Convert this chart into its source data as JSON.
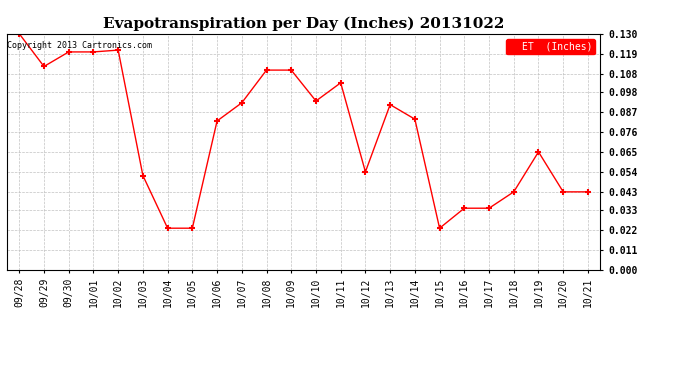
{
  "title": "Evapotranspiration per Day (Inches) 20131022",
  "copyright": "Copyright 2013 Cartronics.com",
  "legend_label": "ET  (Inches)",
  "x_labels": [
    "09/28",
    "09/29",
    "09/30",
    "10/01",
    "10/02",
    "10/03",
    "10/04",
    "10/05",
    "10/06",
    "10/07",
    "10/08",
    "10/09",
    "10/10",
    "10/11",
    "10/12",
    "10/13",
    "10/14",
    "10/15",
    "10/16",
    "10/17",
    "10/18",
    "10/19",
    "10/20",
    "10/21"
  ],
  "y_values": [
    0.13,
    0.112,
    0.12,
    0.12,
    0.121,
    0.052,
    0.023,
    0.023,
    0.082,
    0.092,
    0.11,
    0.11,
    0.093,
    0.103,
    0.054,
    0.091,
    0.083,
    0.023,
    0.034,
    0.034,
    0.043,
    0.065,
    0.043,
    0.043
  ],
  "ylim": [
    0.0,
    0.13
  ],
  "yticks": [
    0.0,
    0.011,
    0.022,
    0.033,
    0.043,
    0.054,
    0.065,
    0.076,
    0.087,
    0.098,
    0.108,
    0.119,
    0.13
  ],
  "line_color": "red",
  "marker": "+",
  "marker_color": "red",
  "bg_color": "#ffffff",
  "grid_color": "#bbbbbb",
  "title_fontsize": 11,
  "tick_fontsize": 7,
  "legend_bg": "red",
  "legend_fg": "white",
  "figwidth": 6.9,
  "figheight": 3.75,
  "dpi": 100
}
